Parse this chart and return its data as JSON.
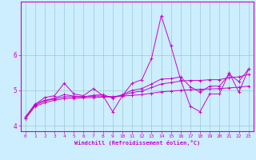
{
  "title": "",
  "xlabel": "Windchill (Refroidissement éolien,°C)",
  "ylabel": "",
  "background_color": "#cceeff",
  "line_color": "#cc00cc",
  "grid_color": "#99cccc",
  "x": [
    0,
    1,
    2,
    3,
    4,
    5,
    6,
    7,
    8,
    9,
    10,
    11,
    12,
    13,
    14,
    15,
    16,
    17,
    18,
    19,
    20,
    21,
    22,
    23
  ],
  "lines": [
    [
      4.2,
      4.6,
      4.8,
      4.85,
      5.2,
      4.9,
      4.85,
      5.05,
      4.85,
      4.4,
      4.85,
      5.2,
      5.3,
      5.9,
      7.1,
      6.25,
      5.3,
      4.55,
      4.4,
      4.9,
      4.9,
      5.5,
      4.95,
      5.6
    ],
    [
      4.25,
      4.62,
      4.72,
      4.78,
      4.88,
      4.84,
      4.82,
      4.86,
      4.88,
      4.78,
      4.88,
      5.0,
      5.05,
      5.18,
      5.32,
      5.33,
      5.38,
      5.1,
      4.95,
      5.12,
      5.12,
      5.45,
      5.25,
      5.6
    ],
    [
      4.22,
      4.58,
      4.7,
      4.76,
      4.82,
      4.82,
      4.82,
      4.84,
      4.84,
      4.82,
      4.86,
      4.94,
      4.98,
      5.08,
      5.18,
      5.22,
      5.26,
      5.28,
      5.28,
      5.3,
      5.3,
      5.36,
      5.38,
      5.45
    ],
    [
      4.2,
      4.55,
      4.65,
      4.72,
      4.77,
      4.78,
      4.79,
      4.8,
      4.81,
      4.82,
      4.84,
      4.86,
      4.88,
      4.92,
      4.96,
      4.98,
      5.0,
      5.02,
      5.03,
      5.04,
      5.05,
      5.07,
      5.09,
      5.12
    ]
  ],
  "xlim": [
    -0.5,
    23.5
  ],
  "ylim": [
    3.85,
    7.5
  ],
  "yticks": [
    4,
    5,
    6
  ],
  "xticks": [
    0,
    1,
    2,
    3,
    4,
    5,
    6,
    7,
    8,
    9,
    10,
    11,
    12,
    13,
    14,
    15,
    16,
    17,
    18,
    19,
    20,
    21,
    22,
    23
  ],
  "xtick_fontsize": 4.5,
  "ytick_fontsize": 5.5,
  "xlabel_fontsize": 5.0
}
